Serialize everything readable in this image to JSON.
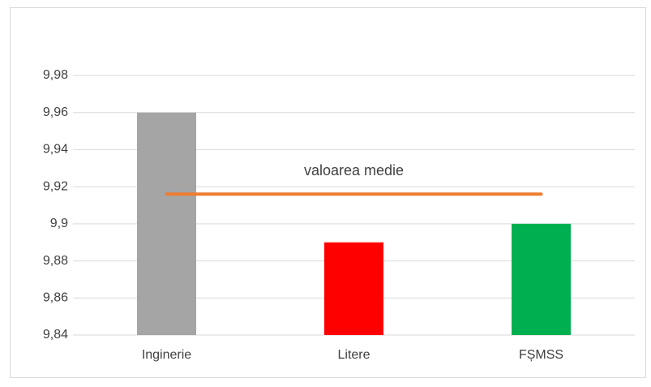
{
  "chart_data": {
    "type": "bar",
    "categories": [
      "Inginerie",
      "Litere",
      "FȘMSS"
    ],
    "values": [
      9.96,
      9.89,
      9.9
    ],
    "colors": [
      "#a5a5a5",
      "#ff0000",
      "#00b050"
    ],
    "ylim": [
      9.84,
      9.98
    ],
    "yticks": [
      {
        "value": 9.84,
        "label": "9,84"
      },
      {
        "value": 9.86,
        "label": "9,86"
      },
      {
        "value": 9.88,
        "label": "9,88"
      },
      {
        "value": 9.9,
        "label": "9,9"
      },
      {
        "value": 9.92,
        "label": "9,92"
      },
      {
        "value": 9.94,
        "label": "9,94"
      },
      {
        "value": 9.96,
        "label": "9,96"
      },
      {
        "value": 9.98,
        "label": "9,98"
      }
    ],
    "grid": true,
    "mean_line": {
      "value": 9.916,
      "label": "valoarea medie",
      "color": "#ed7d31"
    }
  }
}
